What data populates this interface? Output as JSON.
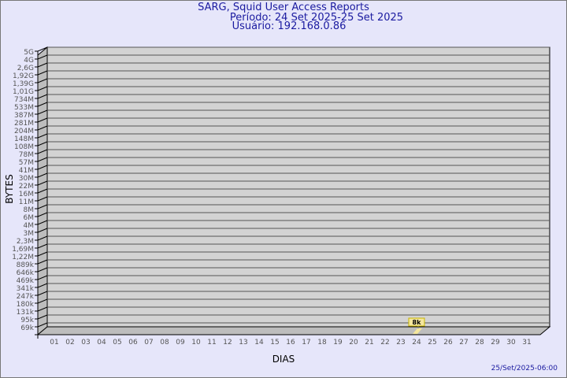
{
  "header": {
    "title": "SARG, Squid User Access Reports",
    "period": "Período: 24 Set 2025-25 Set 2025",
    "user": "Usuário: 192.168.0.86"
  },
  "footer": {
    "timestamp": "25/Set/2025-06:00"
  },
  "chart_data": {
    "type": "bar",
    "xlabel": "DIAS",
    "ylabel": "BYTES",
    "x_ticks": [
      "01",
      "02",
      "03",
      "04",
      "05",
      "06",
      "07",
      "08",
      "09",
      "10",
      "11",
      "12",
      "13",
      "14",
      "15",
      "16",
      "17",
      "18",
      "19",
      "20",
      "21",
      "22",
      "23",
      "24",
      "25",
      "26",
      "27",
      "28",
      "29",
      "30",
      "31"
    ],
    "y_ticks": [
      "5G",
      "4G",
      "2,6G",
      "1,92G",
      "1,39G",
      "1,01G",
      "734M",
      "533M",
      "387M",
      "281M",
      "204M",
      "148M",
      "108M",
      "78M",
      "57M",
      "41M",
      "30M",
      "22M",
      "16M",
      "11M",
      "8M",
      "6M",
      "4M",
      "3M",
      "2,3M",
      "1,69M",
      "1,22M",
      "889k",
      "646k",
      "469k",
      "341k",
      "247k",
      "180k",
      "131k",
      "95k",
      "69k"
    ],
    "y_scale": "log",
    "grid": true,
    "categories": [
      "24"
    ],
    "values": [
      8000
    ],
    "data_labels": [
      "8k"
    ],
    "colors": {
      "plot_bg": "#d3d3d3",
      "bar": "#f5e79e",
      "label_bg": "#f5e79e",
      "text": "#1a1aa0",
      "axis_text": "#555555"
    }
  }
}
